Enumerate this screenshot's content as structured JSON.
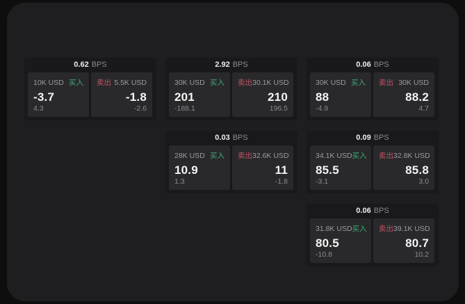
{
  "colors": {
    "page_bg": "#0e0e0f",
    "window_bg": "#1e1e20",
    "card_bg": "#19191b",
    "tile_bg": "#29292b",
    "text_primary": "#f4f4f5",
    "text_secondary": "#9c9c9e",
    "buy_green": "#3eaa75",
    "sell_red": "#c05364"
  },
  "labels": {
    "bps_unit": "BPS",
    "buy": "买入",
    "sell": "卖出"
  },
  "cards": [
    {
      "bps": "0.62",
      "buy": {
        "amount": "10K USD",
        "value": "-3.7",
        "sub": "4.3"
      },
      "sell": {
        "amount": "5.5K USD",
        "value": "-1.8",
        "sub": "-2.6"
      }
    },
    {
      "bps": "2.92",
      "buy": {
        "amount": "30K USD",
        "value": "201",
        "sub": "-188.1"
      },
      "sell": {
        "amount": "30.1K USD",
        "value": "210",
        "sub": "196.5"
      }
    },
    {
      "bps": "0.06",
      "buy": {
        "amount": "30K USD",
        "value": "88",
        "sub": "-4.9"
      },
      "sell": {
        "amount": "30K USD",
        "value": "88.2",
        "sub": "4.7"
      }
    },
    {
      "bps": "0.03",
      "buy": {
        "amount": "28K USD",
        "value": "10.9",
        "sub": "1.3"
      },
      "sell": {
        "amount": "32.6K USD",
        "value": "11",
        "sub": "-1.8"
      }
    },
    {
      "bps": "0.09",
      "buy": {
        "amount": "34.1K USD",
        "value": "85.5",
        "sub": "-3.1"
      },
      "sell": {
        "amount": "32.8K USD",
        "value": "85.8",
        "sub": "3.0"
      }
    },
    {
      "bps": "0.06",
      "buy": {
        "amount": "31.8K USD",
        "value": "80.5",
        "sub": "-10.8"
      },
      "sell": {
        "amount": "39.1K USD",
        "value": "80.7",
        "sub": "10.2"
      }
    }
  ]
}
